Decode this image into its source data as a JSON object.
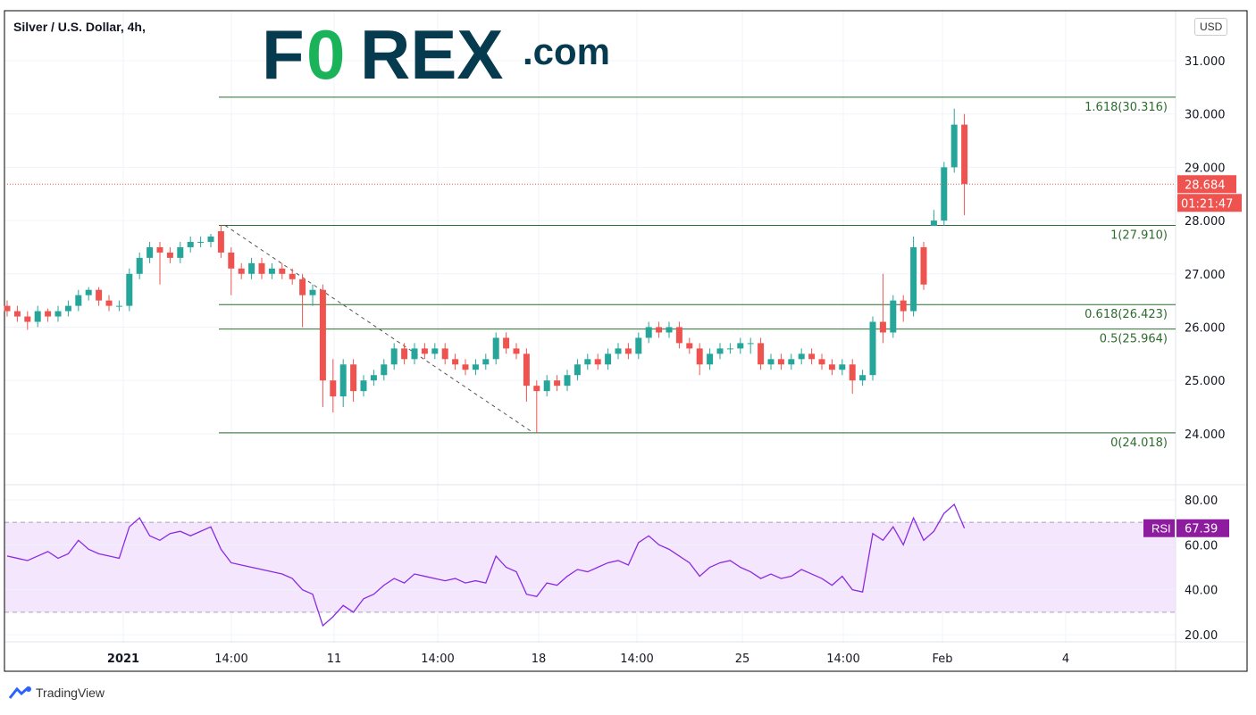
{
  "header": {
    "title": "Silver / U.S. Dollar, 4h,",
    "currency_button": "USD"
  },
  "logo": {
    "text": "FOREX.com",
    "brand_dark": "#063a4f",
    "brand_green": "#1ab35a"
  },
  "footer": {
    "brand": "TradingView"
  },
  "colors": {
    "up": "#26a69a",
    "down": "#ef5350",
    "fib": "#2e6b2e",
    "rsi_line": "#8a2be2",
    "rsi_band": "#f3e6fd",
    "rsi_tag": "#8e1c9e"
  },
  "chart_data": [
    {
      "type": "candlestick",
      "title": "Silver / U.S. Dollar, 4h,",
      "ylim": [
        23.3,
        31.9
      ],
      "yticks": [
        "31.000",
        "30.000",
        "29.000",
        "28.000",
        "27.000",
        "26.000",
        "25.000",
        "24.000"
      ],
      "xticks": [
        {
          "label": "2021",
          "bold": true
        },
        {
          "label": "14:00"
        },
        {
          "label": "11"
        },
        {
          "label": "14:00"
        },
        {
          "label": "18"
        },
        {
          "label": "14:00"
        },
        {
          "label": "25"
        },
        {
          "label": "14:00"
        },
        {
          "label": "Feb"
        },
        {
          "label": "4"
        }
      ],
      "last_price": "28.684",
      "countdown": "01:21:47",
      "ohlc": [
        [
          26.4,
          26.5,
          26.2,
          26.3
        ],
        [
          26.3,
          26.4,
          26.1,
          26.2
        ],
        [
          26.2,
          26.3,
          25.95,
          26.1
        ],
        [
          26.1,
          26.4,
          26.0,
          26.3
        ],
        [
          26.3,
          26.35,
          26.1,
          26.2
        ],
        [
          26.2,
          26.4,
          26.1,
          26.3
        ],
        [
          26.3,
          26.5,
          26.2,
          26.4
        ],
        [
          26.4,
          26.7,
          26.3,
          26.6
        ],
        [
          26.6,
          26.75,
          26.5,
          26.7
        ],
        [
          26.7,
          26.75,
          26.4,
          26.5
        ],
        [
          26.5,
          26.6,
          26.3,
          26.4
        ],
        [
          26.4,
          26.5,
          26.3,
          26.4
        ],
        [
          26.4,
          27.1,
          26.3,
          27.0
        ],
        [
          27.0,
          27.4,
          26.9,
          27.3
        ],
        [
          27.3,
          27.6,
          27.2,
          27.5
        ],
        [
          27.5,
          27.6,
          26.8,
          27.4
        ],
        [
          27.4,
          27.5,
          27.2,
          27.3
        ],
        [
          27.3,
          27.6,
          27.2,
          27.5
        ],
        [
          27.5,
          27.7,
          27.4,
          27.6
        ],
        [
          27.6,
          27.7,
          27.5,
          27.6
        ],
        [
          27.6,
          27.75,
          27.5,
          27.7
        ],
        [
          27.8,
          27.91,
          27.3,
          27.4
        ],
        [
          27.4,
          27.5,
          26.6,
          27.1
        ],
        [
          27.1,
          27.2,
          26.9,
          27.0
        ],
        [
          27.0,
          27.3,
          26.9,
          27.2
        ],
        [
          27.2,
          27.3,
          26.9,
          27.0
        ],
        [
          27.0,
          27.2,
          26.9,
          27.1
        ],
        [
          27.1,
          27.2,
          26.9,
          27.0
        ],
        [
          27.0,
          27.1,
          26.8,
          26.9
        ],
        [
          26.9,
          27.0,
          26.0,
          26.6
        ],
        [
          26.6,
          26.8,
          26.4,
          26.7
        ],
        [
          26.7,
          26.8,
          24.5,
          25.0
        ],
        [
          25.0,
          25.4,
          24.4,
          24.7
        ],
        [
          24.7,
          25.4,
          24.5,
          25.3
        ],
        [
          25.3,
          25.4,
          24.6,
          24.8
        ],
        [
          24.8,
          25.1,
          24.7,
          25.0
        ],
        [
          25.0,
          25.2,
          24.9,
          25.1
        ],
        [
          25.1,
          25.4,
          25.0,
          25.3
        ],
        [
          25.3,
          25.7,
          25.2,
          25.6
        ],
        [
          25.6,
          25.7,
          25.3,
          25.4
        ],
        [
          25.4,
          25.7,
          25.3,
          25.6
        ],
        [
          25.6,
          25.7,
          25.4,
          25.5
        ],
        [
          25.5,
          25.7,
          25.4,
          25.6
        ],
        [
          25.6,
          25.7,
          25.3,
          25.4
        ],
        [
          25.4,
          25.5,
          25.2,
          25.3
        ],
        [
          25.3,
          25.4,
          25.1,
          25.2
        ],
        [
          25.2,
          25.4,
          25.1,
          25.3
        ],
        [
          25.3,
          25.5,
          25.2,
          25.4
        ],
        [
          25.4,
          25.9,
          25.3,
          25.8
        ],
        [
          25.8,
          25.9,
          25.5,
          25.6
        ],
        [
          25.6,
          25.7,
          25.4,
          25.5
        ],
        [
          25.5,
          25.6,
          24.6,
          24.9
        ],
        [
          24.9,
          25.0,
          24.02,
          24.8
        ],
        [
          24.8,
          25.1,
          24.7,
          25.0
        ],
        [
          25.0,
          25.1,
          24.8,
          24.9
        ],
        [
          24.9,
          25.2,
          24.8,
          25.1
        ],
        [
          25.1,
          25.4,
          25.0,
          25.3
        ],
        [
          25.3,
          25.5,
          25.2,
          25.4
        ],
        [
          25.4,
          25.5,
          25.2,
          25.3
        ],
        [
          25.3,
          25.6,
          25.2,
          25.5
        ],
        [
          25.5,
          25.7,
          25.4,
          25.6
        ],
        [
          25.6,
          25.7,
          25.4,
          25.5
        ],
        [
          25.5,
          25.9,
          25.4,
          25.8
        ],
        [
          25.8,
          26.1,
          25.7,
          26.0
        ],
        [
          26.0,
          26.1,
          25.8,
          25.9
        ],
        [
          25.9,
          26.1,
          25.8,
          26.0
        ],
        [
          26.0,
          26.1,
          25.6,
          25.7
        ],
        [
          25.7,
          25.8,
          25.5,
          25.6
        ],
        [
          25.6,
          25.7,
          25.1,
          25.3
        ],
        [
          25.3,
          25.6,
          25.2,
          25.5
        ],
        [
          25.5,
          25.7,
          25.4,
          25.6
        ],
        [
          25.6,
          25.7,
          25.5,
          25.6
        ],
        [
          25.6,
          25.8,
          25.5,
          25.7
        ],
        [
          25.7,
          25.8,
          25.5,
          25.7
        ],
        [
          25.7,
          25.8,
          25.2,
          25.3
        ],
        [
          25.3,
          25.5,
          25.2,
          25.4
        ],
        [
          25.4,
          25.5,
          25.2,
          25.3
        ],
        [
          25.3,
          25.5,
          25.2,
          25.4
        ],
        [
          25.4,
          25.6,
          25.3,
          25.5
        ],
        [
          25.5,
          25.6,
          25.3,
          25.4
        ],
        [
          25.4,
          25.5,
          25.2,
          25.3
        ],
        [
          25.3,
          25.4,
          25.1,
          25.2
        ],
        [
          25.2,
          25.4,
          25.1,
          25.3
        ],
        [
          25.3,
          25.4,
          24.75,
          25.0
        ],
        [
          25.0,
          25.2,
          24.9,
          25.1
        ],
        [
          25.1,
          26.2,
          25.0,
          26.1
        ],
        [
          26.1,
          27.0,
          25.7,
          25.9
        ],
        [
          25.9,
          26.6,
          25.8,
          26.5
        ],
        [
          26.5,
          26.6,
          26.1,
          26.3
        ],
        [
          26.3,
          27.7,
          26.2,
          27.5
        ],
        [
          27.5,
          27.6,
          26.7,
          26.8
        ],
        [
          27.9,
          28.2,
          27.9,
          28.0
        ],
        [
          28.0,
          29.1,
          27.9,
          29.0
        ],
        [
          29.0,
          30.1,
          28.9,
          29.8
        ],
        [
          29.8,
          30.0,
          28.1,
          28.684
        ]
      ],
      "fib_levels": [
        {
          "ratio": "1.618",
          "value": 30.316,
          "label": "1.618(30.316)"
        },
        {
          "ratio": "1",
          "value": 27.91,
          "label": "1(27.910)"
        },
        {
          "ratio": "0.618",
          "value": 26.423,
          "label": "0.618(26.423)"
        },
        {
          "ratio": "0.5",
          "value": 25.964,
          "label": "0.5(25.964)"
        },
        {
          "ratio": "0",
          "value": 24.018,
          "label": "0(24.018)"
        }
      ],
      "trendline": {
        "from": 27.91,
        "to": 24.018
      }
    },
    {
      "type": "line",
      "name": "RSI",
      "ylim": [
        17,
        83
      ],
      "yticks": [
        "80.00",
        "60.00",
        "40.00",
        "20.00"
      ],
      "band": [
        30,
        70
      ],
      "last_value": "67.39",
      "values": [
        55,
        54,
        53,
        55,
        57,
        54,
        56,
        62,
        58,
        56,
        55,
        54,
        68,
        72,
        64,
        62,
        65,
        66,
        64,
        66,
        68,
        58,
        52,
        51,
        50,
        49,
        48,
        47,
        45,
        40,
        38,
        24,
        28,
        33,
        30,
        36,
        38,
        42,
        45,
        43,
        47,
        46,
        45,
        44,
        45,
        43,
        44,
        43,
        55,
        50,
        48,
        38,
        37,
        43,
        42,
        46,
        49,
        48,
        50,
        52,
        53,
        51,
        61,
        64,
        60,
        58,
        55,
        52,
        46,
        50,
        52,
        53,
        50,
        48,
        45,
        47,
        45,
        46,
        49,
        47,
        45,
        42,
        46,
        40,
        39,
        65,
        62,
        68,
        60,
        72,
        62,
        66,
        74,
        78,
        67.39
      ]
    }
  ]
}
